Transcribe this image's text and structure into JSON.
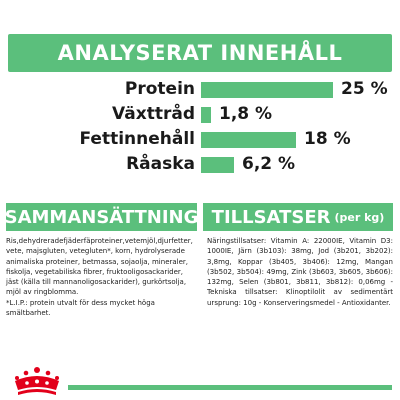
{
  "header": {
    "title": "ANALYSERAT INNEHÅLL"
  },
  "chart_data": {
    "type": "bar",
    "categories": [
      "Protein",
      "Växttråd",
      "Fettinnehåll",
      "Råaska"
    ],
    "values": [
      25,
      1.8,
      18,
      6.2
    ],
    "value_labels": [
      "25 %",
      "1,8 %",
      "18 %",
      "6,2 %"
    ],
    "unit": "%",
    "ylim": [
      0,
      25
    ]
  },
  "sections": {
    "composition": {
      "title": "SAMMANSÄTTNING",
      "text": "Ris,dehydreradefjäderfäproteiner,vetemjöl,djurfetter, vete, majsgluten, vetegluten*, korn, hydrolyserade animaliska proteiner, betmassa, sojaolja, mineraler, fiskolja, vegetabiliska fibrer, fruktooligosackarider, jäst (källa till mannanoligosackarider), gurkörtsolja, mjöl av ringblomma.",
      "note": "*L.I.P.: protein utvalt för dess mycket höga smältbarhet."
    },
    "additives": {
      "title": "TILLSATSER",
      "subtitle": "(per kg)",
      "text": "Näringstillsatser: Vitamin A: 22000IE, Vitamin D3: 1000IE, Järn (3b103): 38mg, Jod (3b201, 3b202): 3,8mg, Koppar (3b405, 3b406): 12mg, Mangan (3b502, 3b504): 49mg, Zink (3b603, 3b605, 3b606): 132mg, Selen (3b801, 3b811, 3b812): 0,06mg - Tekniska tillsatser: Klinoptilolit av sedimentärt ursprung: 10g - Konserveringsmedel - Antioxidanter."
    }
  },
  "brand": {
    "logo": "royal-canin-crown-logo",
    "color": "#5bbf7c",
    "logo_color": "#e2001a"
  }
}
